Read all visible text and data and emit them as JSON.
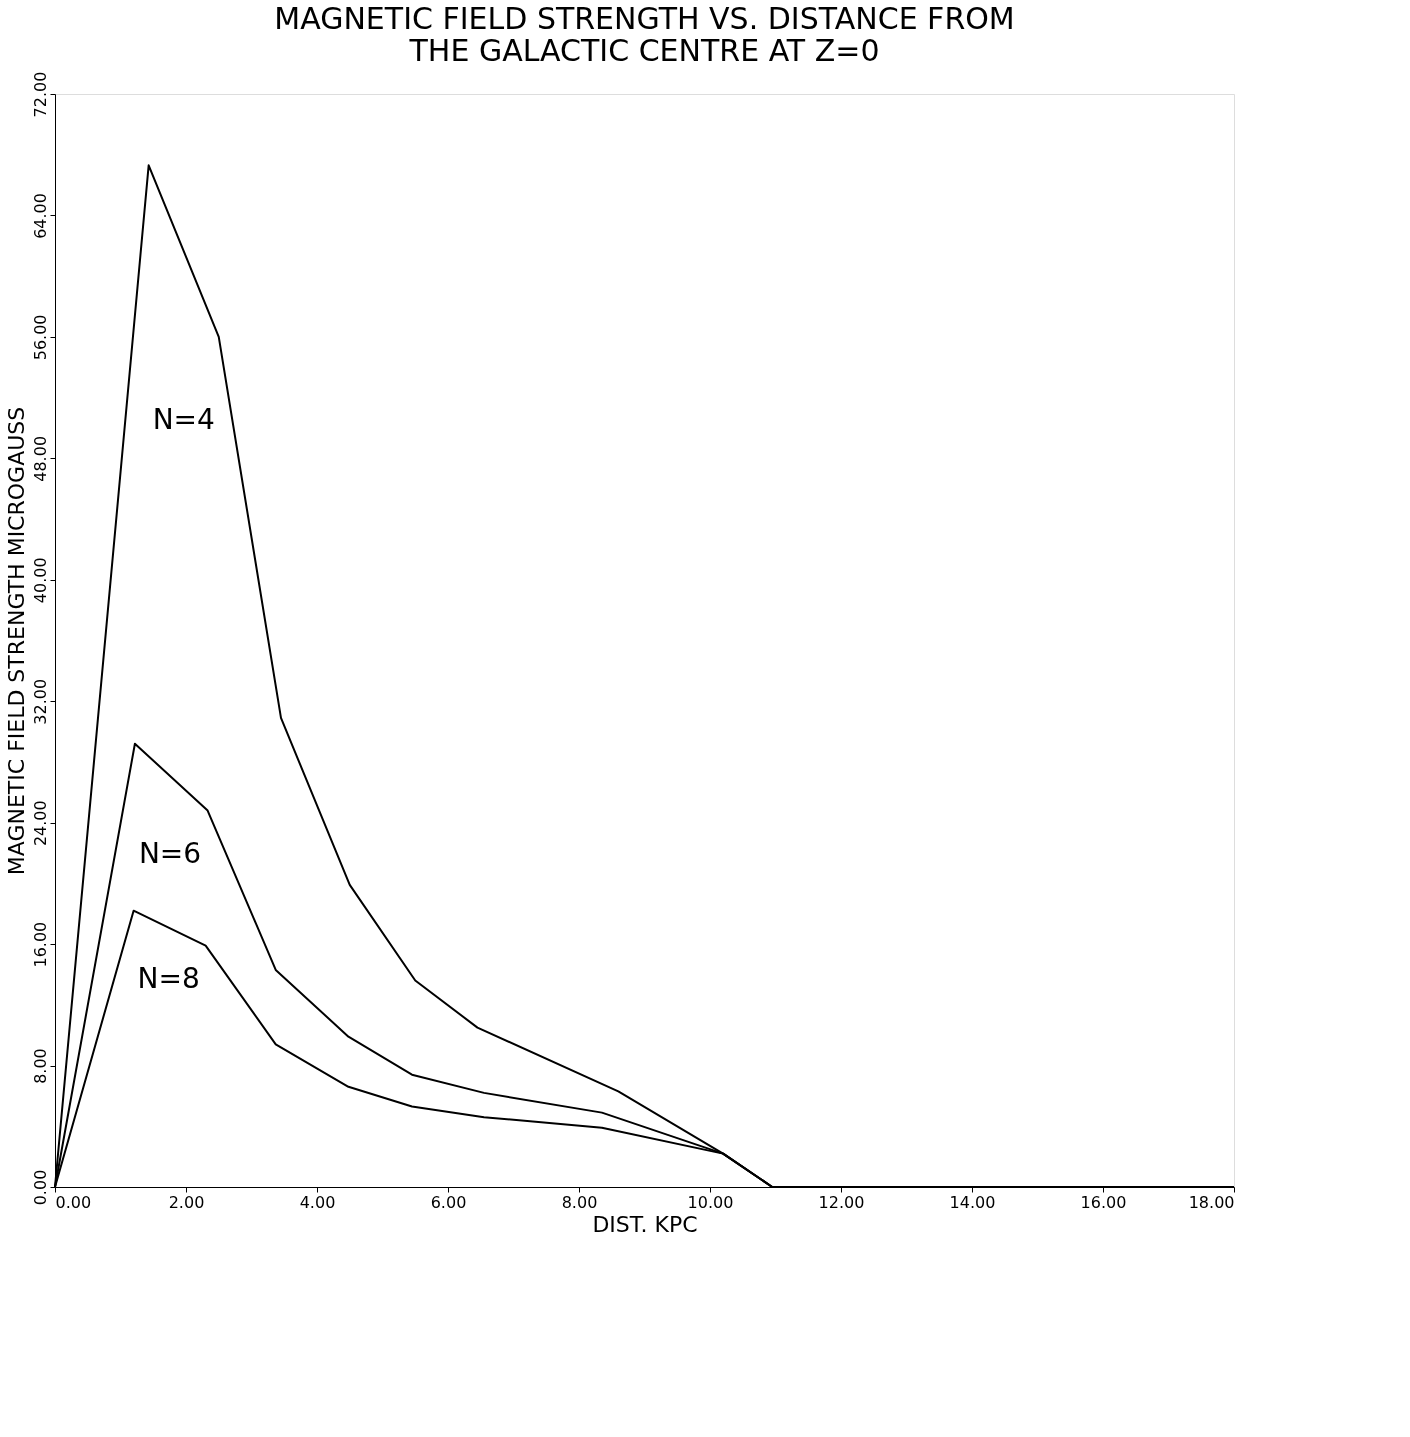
{
  "chart_data": {
    "type": "line",
    "title": [
      "MAGNETIC FIELD STRENGTH VS. DISTANCE FROM",
      "THE GALACTIC CENTRE AT Z=0"
    ],
    "xlabel": "DIST. KPC",
    "ylabel": "MAGNETIC FIELD STRENGTH MICROGAUSS",
    "xlim": [
      0,
      18
    ],
    "ylim": [
      0,
      72
    ],
    "xticks": [
      {
        "value": 0,
        "label": "0.00"
      },
      {
        "value": 2,
        "label": "2.00"
      },
      {
        "value": 4,
        "label": "4.00"
      },
      {
        "value": 6,
        "label": "6.00"
      },
      {
        "value": 8,
        "label": "8.00"
      },
      {
        "value": 10,
        "label": "10.00"
      },
      {
        "value": 12,
        "label": "12.00"
      },
      {
        "value": 14,
        "label": "14.00"
      },
      {
        "value": 16,
        "label": "16.00"
      },
      {
        "value": 18,
        "label": "18.00"
      }
    ],
    "yticks": [
      {
        "value": 0,
        "label": "0.00"
      },
      {
        "value": 8,
        "label": "8.00"
      },
      {
        "value": 16,
        "label": "16.00"
      },
      {
        "value": 24,
        "label": "24.00"
      },
      {
        "value": 32,
        "label": "32.00"
      },
      {
        "value": 40,
        "label": "40.00"
      },
      {
        "value": 48,
        "label": "48.00"
      },
      {
        "value": 56,
        "label": "56.00"
      },
      {
        "value": 64,
        "label": "64.00"
      },
      {
        "value": 72,
        "label": "72.00"
      }
    ],
    "grid": false,
    "marker": "none",
    "line_style": "solid",
    "series": [
      {
        "name": "N=4",
        "color": "#000000",
        "x": [
          0,
          1.43,
          2.5,
          3.45,
          4.5,
          5.5,
          6.45,
          8.6,
          10.2,
          10.95,
          18
        ],
        "values": [
          0,
          67.3,
          56,
          30.9,
          19.9,
          13.6,
          10.5,
          6.3,
          2.2,
          0,
          0
        ]
      },
      {
        "name": "N=6",
        "color": "#000000",
        "x": [
          0,
          1.22,
          2.33,
          3.37,
          4.48,
          5.45,
          6.55,
          8.35,
          10.2,
          10.95,
          18
        ],
        "values": [
          0,
          29.2,
          24.8,
          14.3,
          9.9,
          7.4,
          6.2,
          4.9,
          2.2,
          0,
          0
        ]
      },
      {
        "name": "N=8",
        "color": "#000000",
        "x": [
          0,
          1.2,
          2.3,
          3.37,
          4.48,
          5.45,
          6.55,
          8.35,
          10.2,
          10.95,
          18
        ],
        "values": [
          0,
          18.2,
          15.9,
          9.4,
          6.6,
          5.3,
          4.6,
          3.9,
          2.2,
          0,
          0
        ]
      }
    ]
  }
}
